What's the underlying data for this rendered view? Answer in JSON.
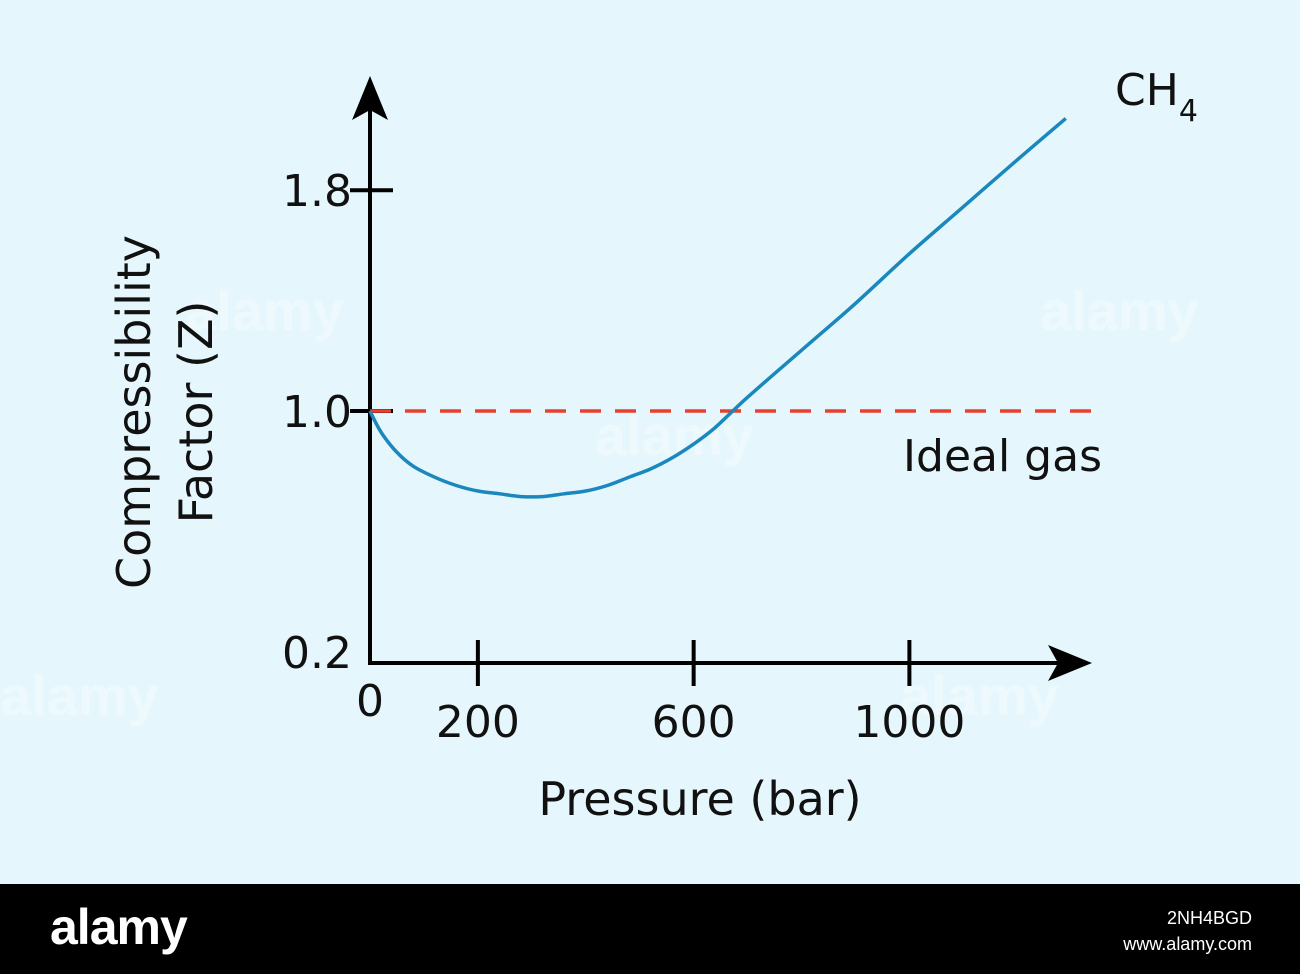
{
  "chart_data": {
    "type": "line",
    "title": "",
    "xlabel": "Pressure (bar)",
    "ylabel_lines": [
      "Compressibility",
      "Factor (Z)"
    ],
    "x_origin_label": "0",
    "x_ticks": [
      200,
      600,
      1000
    ],
    "x_tick_labels": [
      "200",
      "600",
      "1000"
    ],
    "y_ticks": [
      0.2,
      1.0,
      1.8
    ],
    "y_tick_labels": [
      "0.2",
      "1.0",
      "1.8"
    ],
    "xlim": [
      0,
      1300
    ],
    "ylim": [
      0.2,
      2.2
    ],
    "grid": false,
    "series": [
      {
        "name": "CH4",
        "label_main": "CH",
        "label_sub": "4",
        "color": "#1a87bd",
        "style": "solid",
        "x": [
          0,
          10,
          25,
          50,
          80,
          120,
          160,
          200,
          240,
          280,
          320,
          360,
          400,
          440,
          480,
          520,
          560,
          600,
          640,
          700,
          800,
          900,
          1000,
          1100,
          1200,
          1290
        ],
        "y": [
          1.0,
          0.96,
          0.91,
          0.85,
          0.8,
          0.76,
          0.73,
          0.71,
          0.7,
          0.69,
          0.69,
          0.7,
          0.71,
          0.73,
          0.76,
          0.79,
          0.83,
          0.88,
          0.94,
          1.05,
          1.22,
          1.39,
          1.57,
          1.74,
          1.91,
          2.06
        ]
      },
      {
        "name": "Ideal gas",
        "color": "#e8402c",
        "style": "dashed",
        "x": [
          0,
          1340
        ],
        "y": [
          1.0,
          1.0
        ]
      }
    ]
  },
  "watermark": "alamy",
  "footer": {
    "brand": "alamy",
    "image_id": "2NH4BGD",
    "site": "www.alamy.com"
  }
}
